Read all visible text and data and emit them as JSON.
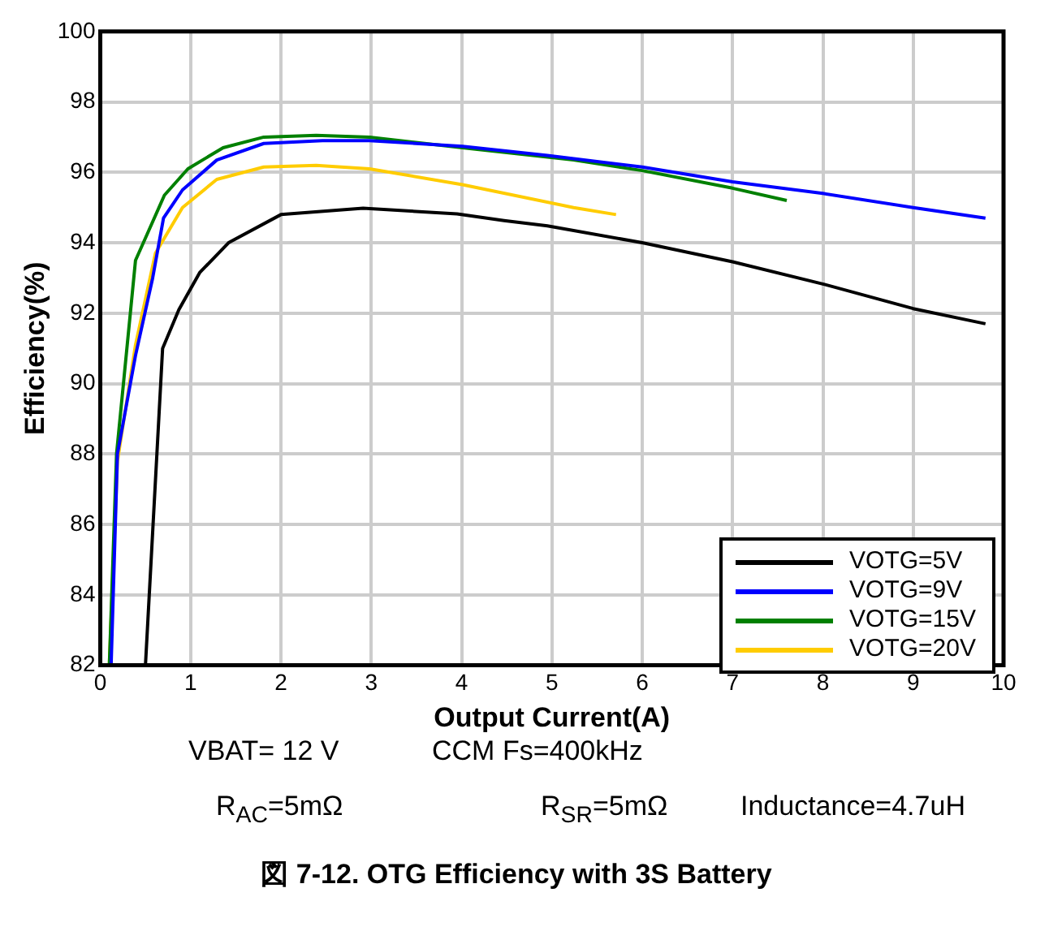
{
  "chart_data": {
    "type": "line",
    "title": "図 7-12. OTG Efficiency with 3S Battery",
    "xlabel": "Output Current(A)",
    "ylabel": "Efficiency(%)",
    "xlim": [
      0,
      10
    ],
    "xticks": [
      0,
      1,
      2,
      3,
      4,
      5,
      6,
      7,
      8,
      9,
      10
    ],
    "ylim": [
      82,
      100
    ],
    "yticks": [
      82,
      84,
      86,
      88,
      90,
      92,
      94,
      96,
      98,
      100
    ],
    "grid": true,
    "legend": "bottom right",
    "marker": "none",
    "line_style": "solid",
    "annotations": [
      "VBAT= 12 V",
      "CCM Fs=400kHz",
      "R$_{AC}$=5mΩ",
      "R$_{SR}$=5mΩ",
      "Inductance=4.7uH"
    ],
    "series": [
      {
        "name": "VOTG=5V",
        "color": "#000000",
        "x": [
          0.5,
          0.69,
          0.87,
          1.1,
          1.42,
          2.0,
          2.91,
          3.95,
          4.47,
          4.95,
          6,
          7,
          8,
          9,
          9.8
        ],
        "values": [
          82,
          91.0,
          92.1,
          93.15,
          94.0,
          94.8,
          94.98,
          94.82,
          94.63,
          94.48,
          94.0,
          93.46,
          92.83,
          92.13,
          91.7
        ]
      },
      {
        "name": "VOTG=9V",
        "color": "#0000ff",
        "x": [
          0.12,
          0.19,
          0.39,
          0.58,
          0.7,
          0.91,
          1.29,
          1.81,
          2.46,
          2.98,
          4.01,
          4.95,
          6,
          7,
          8,
          9,
          9.8
        ],
        "values": [
          82,
          88.0,
          90.8,
          93.0,
          94.7,
          95.5,
          96.35,
          96.82,
          96.9,
          96.9,
          96.74,
          96.48,
          96.15,
          95.73,
          95.4,
          95.0,
          94.7
        ]
      },
      {
        "name": "VOTG=15V",
        "color": "#008000",
        "x": [
          0.1,
          0.18,
          0.39,
          0.52,
          0.71,
          0.97,
          1.36,
          1.81,
          2.39,
          2.98,
          4.01,
          5.24,
          6,
          7,
          7.6
        ],
        "values": [
          82,
          88.0,
          93.5,
          94.25,
          95.35,
          96.1,
          96.7,
          97.0,
          97.05,
          97.0,
          96.7,
          96.35,
          96.05,
          95.55,
          95.2
        ]
      },
      {
        "name": "VOTG=20V",
        "color": "#ffcc00",
        "x": [
          0.1,
          0.19,
          0.39,
          0.61,
          0.91,
          1.29,
          1.81,
          2.39,
          2.98,
          4.01,
          5.24,
          5.71
        ],
        "values": [
          82,
          87.8,
          91.1,
          93.7,
          95.0,
          95.8,
          96.15,
          96.2,
          96.1,
          95.65,
          95.0,
          94.8
        ]
      }
    ]
  }
}
